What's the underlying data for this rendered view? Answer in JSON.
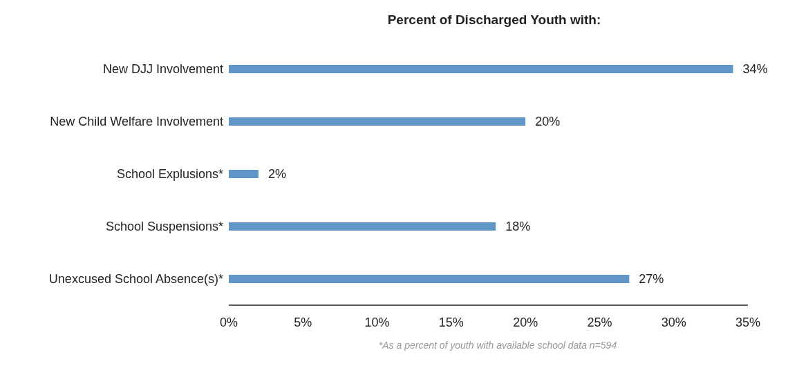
{
  "chart_data": {
    "type": "bar",
    "orientation": "horizontal",
    "title": "Percent of Discharged Youth with:",
    "categories": [
      "New DJJ Involvement",
      "New Child Welfare Involvement",
      "School Explusions*",
      "School Suspensions*",
      "Unexcused School Absence(s)*"
    ],
    "values": [
      34,
      20,
      2,
      18,
      27
    ],
    "value_labels": [
      "34%",
      "20%",
      "2%",
      "18%",
      "27%"
    ],
    "color": "#5f96c7",
    "xlim": [
      0,
      35
    ],
    "xticks": [
      {
        "value": 0,
        "label": "0%"
      },
      {
        "value": 5,
        "label": "5%"
      },
      {
        "value": 10,
        "label": "10%"
      },
      {
        "value": 15,
        "label": "15%"
      },
      {
        "value": 20,
        "label": "20%"
      },
      {
        "value": 25,
        "label": "25%"
      },
      {
        "value": 30,
        "label": "30%"
      },
      {
        "value": 35,
        "label": "35%"
      }
    ],
    "grid": false,
    "annotations": [
      "*As a percent of youth with available school data n=594"
    ]
  }
}
